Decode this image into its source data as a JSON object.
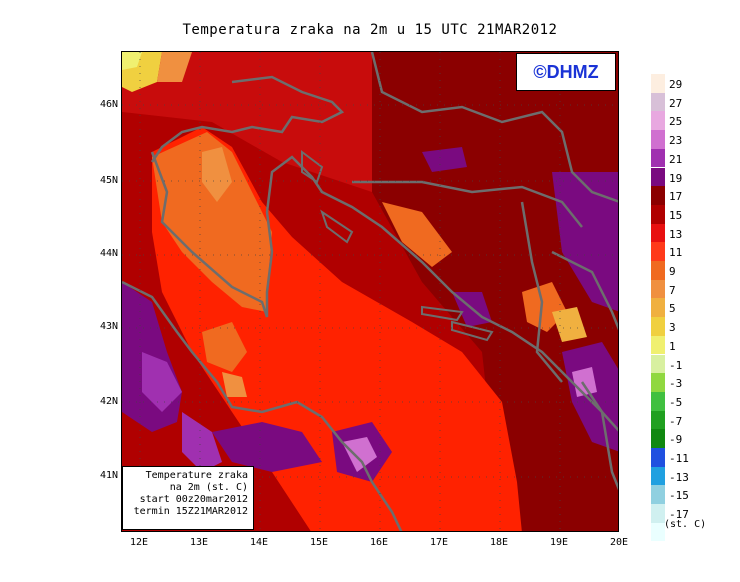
{
  "title": "Temperatura zraka na 2m u 15 UTC 21MAR2012",
  "logo": "©DHMZ",
  "info": {
    "line1": "Temperature zraka",
    "line2": "na 2m (st. C)",
    "line3": "start 00z20mar2012",
    "line4": "termin 15Z21MAR2012"
  },
  "lat_labels": [
    "46N",
    "45N",
    "44N",
    "43N",
    "42N",
    "41N"
  ],
  "lon_labels": [
    "12E",
    "13E",
    "14E",
    "15E",
    "16E",
    "17E",
    "18E",
    "19E",
    "20E"
  ],
  "legend": {
    "unit": "(st. C)",
    "labels": [
      "29",
      "27",
      "25",
      "23",
      "21",
      "19",
      "17",
      "15",
      "13",
      "11",
      "9",
      "7",
      "5",
      "3",
      "1",
      "-1",
      "-3",
      "-5",
      "-7",
      "-9",
      "-11",
      "-13",
      "-15",
      "-17"
    ],
    "colors": [
      "#fdeee0",
      "#d8c0d8",
      "#e8a8e0",
      "#d070d0",
      "#a030b0",
      "#7a0a80",
      "#8b0000",
      "#b00000",
      "#e81010",
      "#ff3a1a",
      "#f06a20",
      "#f09040",
      "#f0b040",
      "#f0d040",
      "#f0f070",
      "#d8f0a0",
      "#90d840",
      "#40c040",
      "#20a020",
      "#108810",
      "#2050e0",
      "#20a0e0",
      "#90d0e0",
      "#d0f0f0",
      "#eaffff"
    ]
  },
  "colors": {
    "land_outline": "#6d6d6d",
    "sea_warm": "#ff2200",
    "land_hot": "#c00000"
  }
}
